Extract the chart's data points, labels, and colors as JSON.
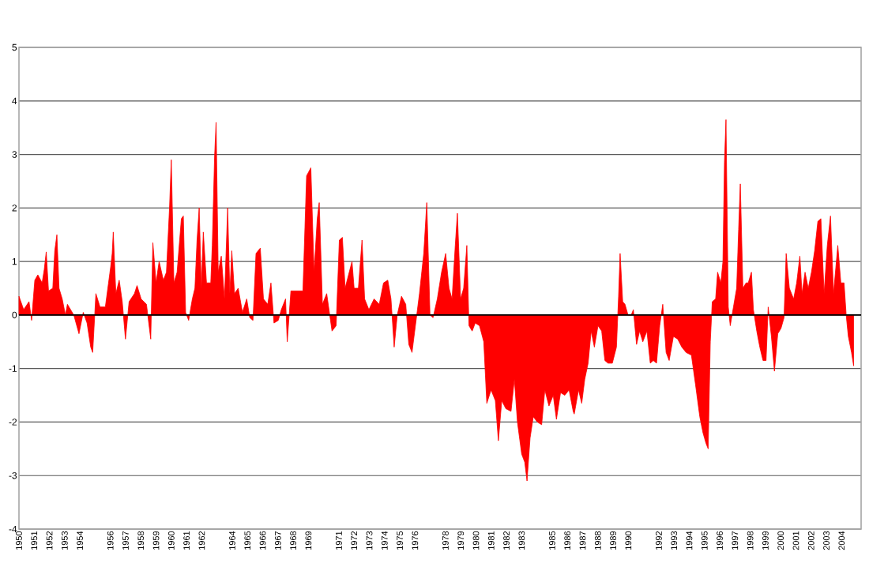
{
  "chart_data": {
    "type": "area",
    "ylim": [
      -4,
      5
    ],
    "yticks": [
      -4,
      -3,
      -2,
      -1,
      0,
      1,
      2,
      3,
      4,
      5
    ],
    "xlim": [
      1950,
      2005.28
    ],
    "xticks": [
      1950,
      1951,
      1952,
      1953,
      1954,
      1956,
      1957,
      1958,
      1959,
      1960,
      1961,
      1962,
      1964,
      1965,
      1966,
      1967,
      1968,
      1969,
      1971,
      1972,
      1973,
      1974,
      1975,
      1976,
      1978,
      1979,
      1980,
      1981,
      1982,
      1983,
      1985,
      1986,
      1987,
      1988,
      1989,
      1990,
      1992,
      1993,
      1994,
      1995,
      1996,
      1997,
      1998,
      1999,
      2000,
      2001,
      2002,
      2003,
      2004
    ],
    "grid": "y",
    "ref_lines": [
      {
        "axis": "y",
        "value": 0,
        "color": "#000000"
      }
    ],
    "series": [
      {
        "color": "#ff0000",
        "x": [
          1950.0,
          1950.31,
          1950.66,
          1950.83,
          1951.04,
          1951.24,
          1951.52,
          1951.66,
          1951.79,
          1951.94,
          1952.22,
          1952.35,
          1952.49,
          1952.63,
          1952.84,
          1953.05,
          1953.18,
          1953.6,
          1953.94,
          1954.22,
          1954.47,
          1954.71,
          1954.84,
          1955.05,
          1955.32,
          1955.67,
          1955.88,
          1956.02,
          1956.12,
          1956.19,
          1956.36,
          1956.58,
          1956.78,
          1956.99,
          1957.23,
          1957.58,
          1957.75,
          1958.02,
          1958.37,
          1958.65,
          1958.79,
          1959.0,
          1959.2,
          1959.48,
          1959.68,
          1959.89,
          1960.0,
          1960.17,
          1960.38,
          1960.66,
          1960.79,
          1960.94,
          1961.14,
          1961.38,
          1961.55,
          1961.69,
          1961.83,
          1961.97,
          1962.1,
          1962.31,
          1962.59,
          1962.69,
          1962.84,
          1962.94,
          1963.08,
          1963.28,
          1963.49,
          1963.7,
          1963.84,
          1963.97,
          1964.15,
          1964.39,
          1964.67,
          1964.95,
          1965.15,
          1965.36,
          1965.56,
          1965.84,
          1966.05,
          1966.33,
          1966.54,
          1966.74,
          1967.02,
          1967.22,
          1967.5,
          1967.61,
          1967.85,
          1968.2,
          1968.64,
          1968.88,
          1969.16,
          1969.37,
          1969.58,
          1969.71,
          1969.92,
          1970.2,
          1970.55,
          1970.82,
          1971.03,
          1971.23,
          1971.41,
          1971.86,
          1972.0,
          1972.28,
          1972.52,
          1972.69,
          1972.97,
          1973.31,
          1973.65,
          1973.93,
          1974.21,
          1974.42,
          1974.63,
          1974.83,
          1975.11,
          1975.39,
          1975.59,
          1975.8,
          1976.29,
          1976.57,
          1976.77,
          1976.98,
          1977.18,
          1977.46,
          1977.74,
          1978.01,
          1978.23,
          1978.43,
          1978.64,
          1978.78,
          1978.99,
          1979.19,
          1979.4,
          1979.54,
          1979.75,
          1979.95,
          1980.23,
          1980.51,
          1980.71,
          1980.99,
          1981.27,
          1981.47,
          1981.69,
          1981.96,
          1982.3,
          1982.52,
          1982.72,
          1983.0,
          1983.2,
          1983.35,
          1983.55,
          1983.76,
          1984.03,
          1984.31,
          1984.52,
          1984.79,
          1985.07,
          1985.28,
          1985.55,
          1985.83,
          1986.11,
          1986.38,
          1986.45,
          1986.73,
          1986.94,
          1987.14,
          1987.36,
          1987.56,
          1987.77,
          1988.01,
          1988.25,
          1988.46,
          1988.67,
          1988.95,
          1989.22,
          1989.36,
          1989.46,
          1989.63,
          1989.78,
          1989.98,
          1990.19,
          1990.33,
          1990.54,
          1990.74,
          1990.95,
          1991.22,
          1991.44,
          1991.64,
          1991.85,
          1992.06,
          1992.26,
          1992.48,
          1992.68,
          1992.96,
          1993.24,
          1993.51,
          1993.79,
          1994.14,
          1994.41,
          1994.69,
          1994.9,
          1995.1,
          1995.24,
          1995.38,
          1995.51,
          1995.73,
          1995.86,
          1996.07,
          1996.21,
          1996.31,
          1996.41,
          1996.56,
          1996.69,
          1996.9,
          1997.11,
          1997.24,
          1997.35,
          1997.52,
          1997.73,
          1997.87,
          1998.08,
          1998.21,
          1998.43,
          1998.63,
          1998.84,
          1999.04,
          1999.18,
          1999.39,
          1999.59,
          1999.81,
          2000.02,
          2000.22,
          2000.36,
          2000.57,
          2000.85,
          2001.05,
          2001.26,
          2001.4,
          2001.6,
          2001.81,
          2002.02,
          2002.23,
          2002.44,
          2002.64,
          2002.85,
          2003.06,
          2003.27,
          2003.47,
          2003.75,
          2003.95,
          2004.16,
          2004.3,
          2004.44,
          2004.65,
          2004.79
        ],
        "values": [
          0.35,
          0.1,
          0.25,
          -0.1,
          0.65,
          0.75,
          0.6,
          0.85,
          1.18,
          0.45,
          0.5,
          1.2,
          1.5,
          0.5,
          0.3,
          0.0,
          0.2,
          0.0,
          -0.35,
          0.05,
          -0.15,
          -0.6,
          -0.7,
          0.4,
          0.15,
          0.15,
          0.6,
          0.9,
          1.15,
          1.55,
          0.4,
          0.65,
          0.25,
          -0.45,
          0.25,
          0.4,
          0.55,
          0.3,
          0.2,
          -0.45,
          1.35,
          0.6,
          1.0,
          0.65,
          0.8,
          2.05,
          2.9,
          0.6,
          0.8,
          1.8,
          1.85,
          0.05,
          -0.1,
          0.3,
          0.5,
          1.4,
          2.0,
          0.5,
          1.55,
          0.6,
          0.6,
          1.3,
          2.95,
          3.6,
          0.8,
          1.1,
          0.3,
          2.0,
          0.4,
          1.2,
          0.4,
          0.5,
          0.05,
          0.3,
          -0.05,
          -0.1,
          1.15,
          1.25,
          0.3,
          0.2,
          0.6,
          -0.15,
          -0.1,
          0.1,
          0.3,
          -0.5,
          0.45,
          0.45,
          0.45,
          2.6,
          2.75,
          0.8,
          1.8,
          2.1,
          0.2,
          0.4,
          -0.3,
          -0.2,
          1.4,
          1.45,
          0.5,
          1.0,
          0.5,
          0.5,
          1.4,
          0.3,
          0.1,
          0.3,
          0.2,
          0.6,
          0.65,
          0.3,
          -0.6,
          0.0,
          0.35,
          0.2,
          -0.55,
          -0.7,
          0.4,
          1.15,
          2.1,
          0.0,
          -0.05,
          0.3,
          0.8,
          1.15,
          0.5,
          0.3,
          1.3,
          1.9,
          0.3,
          0.5,
          1.3,
          -0.2,
          -0.3,
          -0.15,
          -0.2,
          -0.5,
          -1.65,
          -1.4,
          -1.6,
          -2.35,
          -1.6,
          -1.75,
          -1.8,
          -1.2,
          -2.0,
          -2.6,
          -2.75,
          -3.1,
          -2.3,
          -1.9,
          -2.0,
          -2.05,
          -1.4,
          -1.7,
          -1.5,
          -1.95,
          -1.45,
          -1.5,
          -1.4,
          -1.8,
          -1.85,
          -1.4,
          -1.65,
          -1.2,
          -0.9,
          -0.3,
          -0.6,
          -0.2,
          -0.3,
          -0.85,
          -0.9,
          -0.9,
          -0.6,
          0.35,
          1.15,
          0.25,
          0.2,
          0.0,
          0.0,
          0.1,
          -0.55,
          -0.3,
          -0.5,
          -0.3,
          -0.9,
          -0.85,
          -0.9,
          -0.2,
          0.2,
          -0.7,
          -0.85,
          -0.4,
          -0.45,
          -0.6,
          -0.7,
          -0.75,
          -1.3,
          -1.9,
          -2.2,
          -2.4,
          -2.5,
          -0.5,
          0.25,
          0.3,
          0.8,
          0.6,
          1.0,
          2.85,
          3.65,
          0.15,
          -0.2,
          0.15,
          0.5,
          1.6,
          2.45,
          0.5,
          0.6,
          0.6,
          0.8,
          0.1,
          -0.3,
          -0.6,
          -0.85,
          -0.85,
          0.15,
          -0.4,
          -1.05,
          -0.35,
          -0.25,
          -0.05,
          1.15,
          0.5,
          0.3,
          0.6,
          1.1,
          0.4,
          0.8,
          0.5,
          0.8,
          1.2,
          1.75,
          1.8,
          0.4,
          1.3,
          1.85,
          0.4,
          1.3,
          0.6,
          0.6,
          0.0,
          -0.4,
          -0.7,
          -0.95
        ]
      }
    ]
  }
}
